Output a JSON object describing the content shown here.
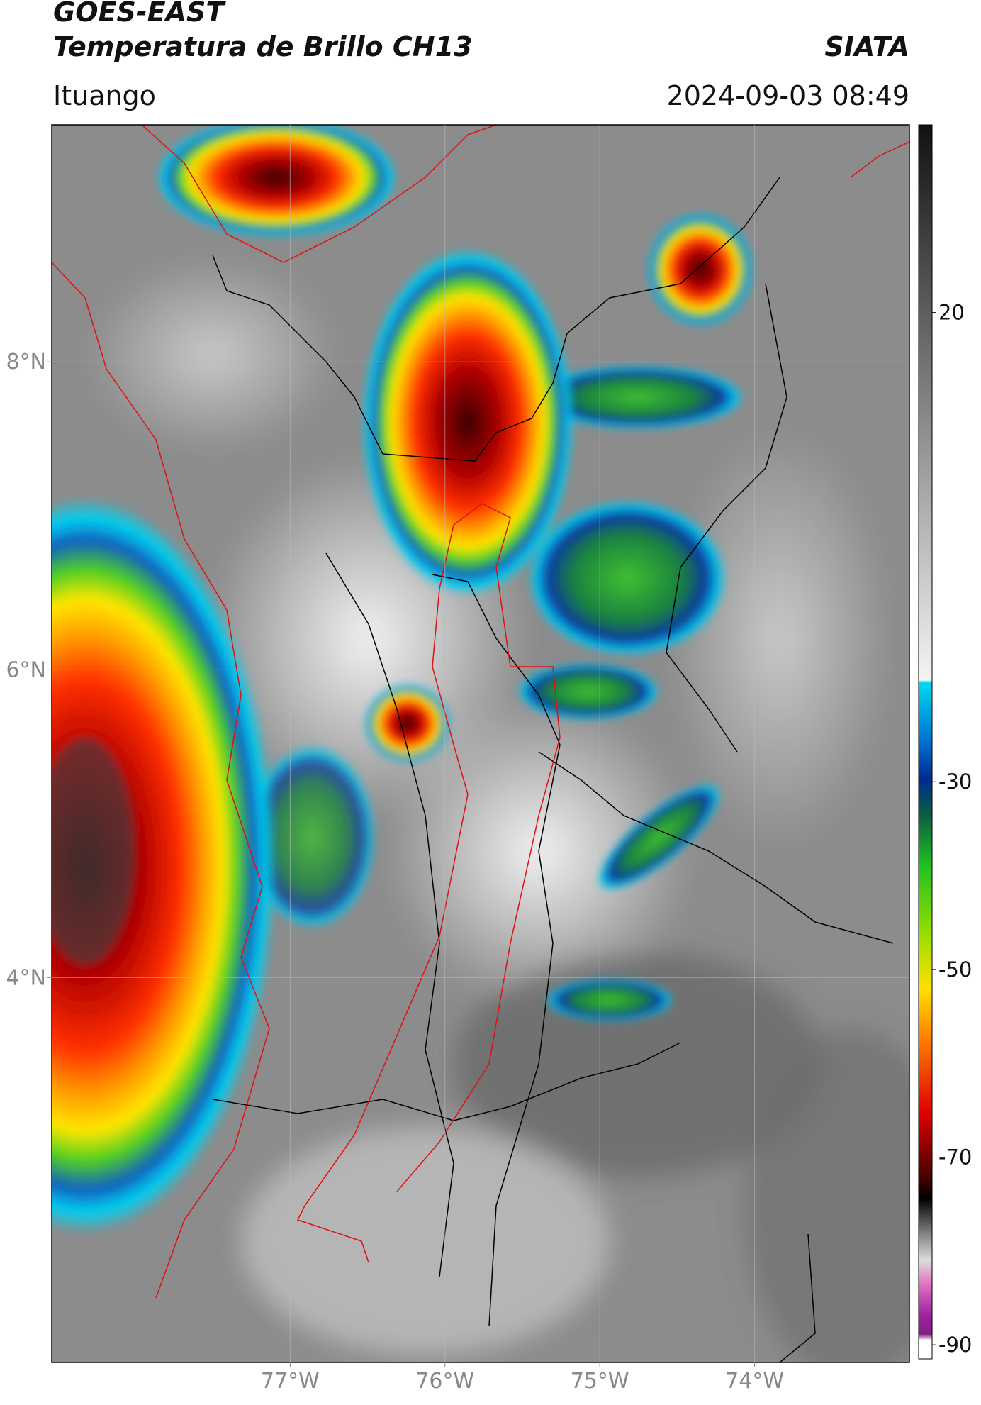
{
  "header": {
    "title": "GOES-EAST",
    "subtitle": "Temperatura de Brillo CH13",
    "agency": "SIATA",
    "location": "Ituango",
    "timestamp": "2024-09-03 08:49"
  },
  "map": {
    "type": "map",
    "ylim": [
      1.5,
      9.54
    ],
    "xlim": [
      -78.54,
      -73.0
    ],
    "yticks": [
      {
        "value": 8,
        "label": "8°N"
      },
      {
        "value": 6,
        "label": "6°N"
      },
      {
        "value": 4,
        "label": "4°N"
      }
    ],
    "xticks": [
      {
        "value": -77,
        "label": "77°W"
      },
      {
        "value": -76,
        "label": "76°W"
      },
      {
        "value": -75,
        "label": "75°W"
      },
      {
        "value": -74,
        "label": "74°W"
      }
    ],
    "grid": true
  },
  "colorbar": {
    "clim": [
      -91.5,
      40
    ],
    "ticks": [
      20,
      -30,
      -50,
      -70,
      -90
    ]
  }
}
